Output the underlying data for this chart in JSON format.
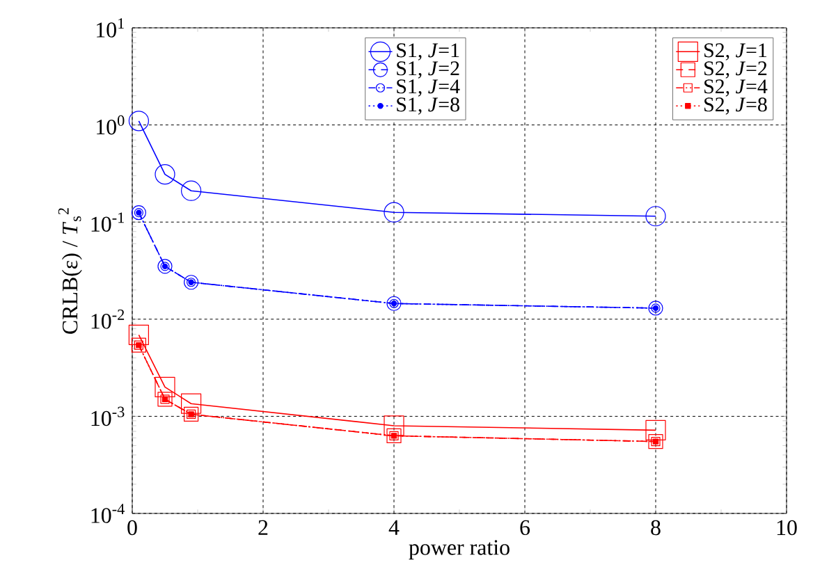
{
  "chart_data": {
    "type": "line",
    "xlabel": "power ratio",
    "ylabel": "CRLB(ε) / *T*$_{s}$$^{2}$",
    "xlim": [
      0,
      10
    ],
    "ylim": [
      0.0001,
      10
    ],
    "log": "y",
    "xticks": [
      0,
      2,
      4,
      6,
      8,
      10
    ],
    "yticks": [
      {
        "value": 0.0001,
        "label": "10$^{-4}$"
      },
      {
        "value": 0.001,
        "label": "10$^{-3}$"
      },
      {
        "value": 0.01,
        "label": "10$^{-2}$"
      },
      {
        "value": 0.1,
        "label": "10$^{-1}$"
      },
      {
        "value": 1,
        "label": "10$^{0}$"
      },
      {
        "value": 10,
        "label": "10$^{1}$"
      }
    ],
    "grid": true,
    "legend": "top right",
    "x": [
      0.1,
      0.5,
      0.9,
      4,
      8
    ],
    "series": [
      {
        "name": "S1, *J*=1",
        "color": "#0000ff",
        "marker": "circle",
        "line_style": "solid",
        "values": [
          1.1,
          0.31,
          0.21,
          0.126,
          0.115
        ]
      },
      {
        "name": "S1, *J*=2",
        "color": "#0000ff",
        "marker": "circle",
        "line_style": "dashed",
        "values": [
          0.125,
          0.035,
          0.024,
          0.0145,
          0.013
        ]
      },
      {
        "name": "S1, *J*=4",
        "color": "#0000ff",
        "marker": "circle",
        "line_style": "dashdotted",
        "values": [
          0.125,
          0.035,
          0.024,
          0.0145,
          0.013
        ]
      },
      {
        "name": "S1, *J*=8",
        "color": "#0000ff",
        "marker": "circle",
        "line_style": "dotted",
        "values": [
          0.125,
          0.035,
          0.024,
          0.0145,
          0.013
        ]
      },
      {
        "name": "S2, *J*=1",
        "color": "#ff0000",
        "marker": "square",
        "line_style": "solid",
        "values": [
          0.0069,
          0.002,
          0.00135,
          0.0008,
          0.00072
        ]
      },
      {
        "name": "S2, *J*=2",
        "color": "#ff0000",
        "marker": "square",
        "line_style": "dashed",
        "values": [
          0.0054,
          0.0015,
          0.00105,
          0.00063,
          0.00055
        ]
      },
      {
        "name": "S2, *J*=4",
        "color": "#ff0000",
        "marker": "square",
        "line_style": "dashdotted",
        "values": [
          0.0054,
          0.0015,
          0.00105,
          0.00063,
          0.00055
        ]
      },
      {
        "name": "S2, *J*=8",
        "color": "#ff0000",
        "marker": "square",
        "line_style": "dotted",
        "values": [
          0.0054,
          0.0015,
          0.00105,
          0.00063,
          0.00055
        ]
      }
    ]
  }
}
